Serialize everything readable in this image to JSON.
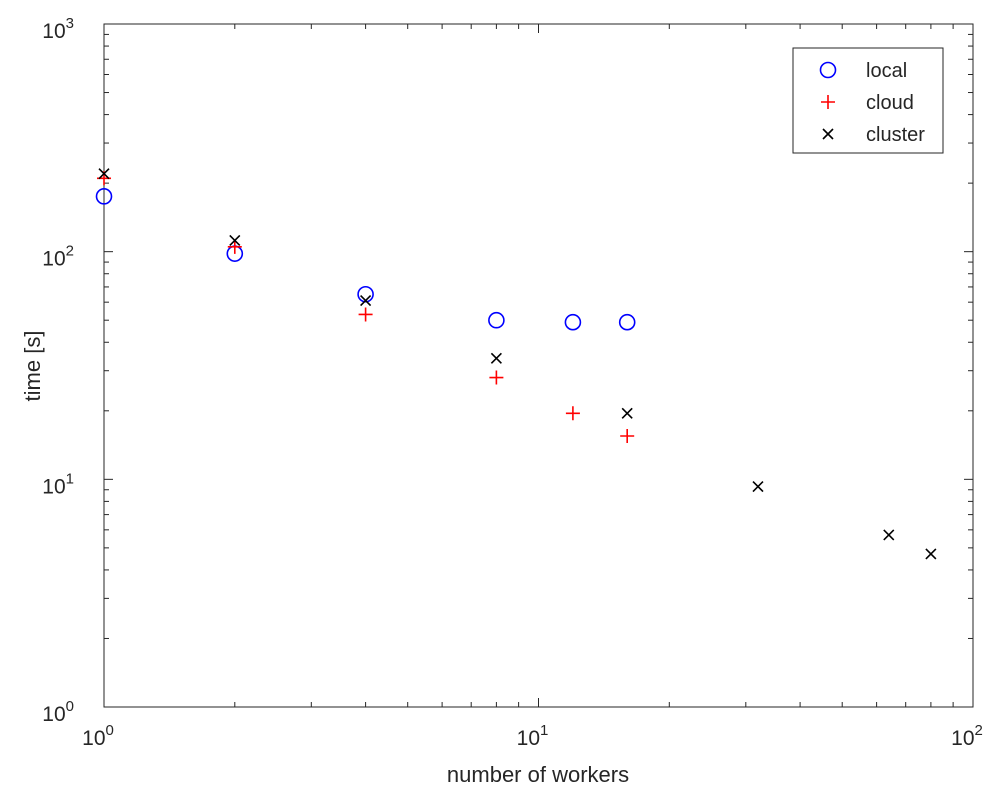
{
  "chart_data": {
    "type": "scatter",
    "xlabel": "number of workers",
    "ylabel": "time [s]",
    "x_scale": "log",
    "y_scale": "log",
    "xlim": [
      1,
      100
    ],
    "ylim": [
      1,
      1000
    ],
    "grid": false,
    "legend_position": "top-right",
    "x_ticks": [
      {
        "value": 1,
        "base": "10",
        "exp": "0"
      },
      {
        "value": 10,
        "base": "10",
        "exp": "1"
      },
      {
        "value": 100,
        "base": "10",
        "exp": "2"
      }
    ],
    "y_ticks": [
      {
        "value": 1,
        "base": "10",
        "exp": "0"
      },
      {
        "value": 10,
        "base": "10",
        "exp": "1"
      },
      {
        "value": 100,
        "base": "10",
        "exp": "2"
      },
      {
        "value": 1000,
        "base": "10",
        "exp": "3"
      }
    ],
    "series": [
      {
        "name": "local",
        "marker": "circle",
        "color": "#0000ff",
        "x": [
          1,
          2,
          4,
          8,
          12,
          16
        ],
        "y": [
          175,
          98,
          65,
          50,
          49,
          49
        ]
      },
      {
        "name": "cloud",
        "marker": "plus",
        "color": "#ff0000",
        "x": [
          1,
          2,
          4,
          8,
          12,
          16
        ],
        "y": [
          210,
          105,
          53,
          28,
          19.5,
          15.5
        ]
      },
      {
        "name": "cluster",
        "marker": "cross",
        "color": "#000000",
        "x": [
          1,
          2,
          4,
          8,
          16,
          32,
          64,
          80
        ],
        "y": [
          220,
          112,
          61,
          34,
          19.5,
          9.3,
          5.7,
          4.7
        ]
      }
    ]
  }
}
